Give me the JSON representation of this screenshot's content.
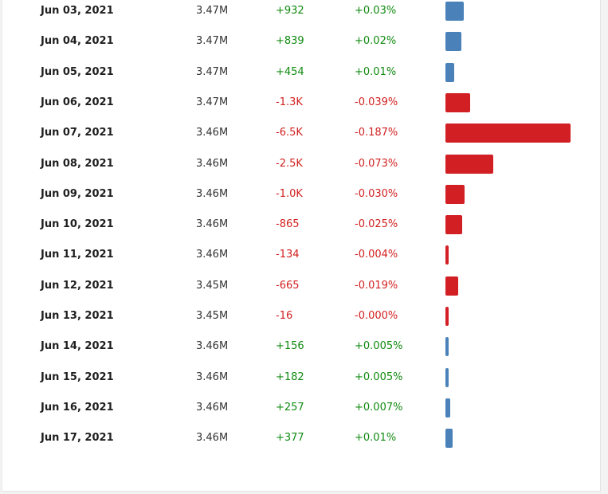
{
  "colors": {
    "positive_text": "#108a10",
    "negative_text": "#d22020",
    "positive_bar": "#4a81b8",
    "negative_bar": "#d21f24"
  },
  "table": {
    "rows": [
      {
        "date": "Jun 03, 2021",
        "total": "3.47M",
        "change": "+932",
        "change_pct": "+0.03%",
        "direction": "up",
        "change_value": 932
      },
      {
        "date": "Jun 04, 2021",
        "total": "3.47M",
        "change": "+839",
        "change_pct": "+0.02%",
        "direction": "up",
        "change_value": 839
      },
      {
        "date": "Jun 05, 2021",
        "total": "3.47M",
        "change": "+454",
        "change_pct": "+0.01%",
        "direction": "up",
        "change_value": 454
      },
      {
        "date": "Jun 06, 2021",
        "total": "3.47M",
        "change": "-1.3K",
        "change_pct": "-0.039%",
        "direction": "down",
        "change_value": -1300
      },
      {
        "date": "Jun 07, 2021",
        "total": "3.46M",
        "change": "-6.5K",
        "change_pct": "-0.187%",
        "direction": "down",
        "change_value": -6500
      },
      {
        "date": "Jun 08, 2021",
        "total": "3.46M",
        "change": "-2.5K",
        "change_pct": "-0.073%",
        "direction": "down",
        "change_value": -2500
      },
      {
        "date": "Jun 09, 2021",
        "total": "3.46M",
        "change": "-1.0K",
        "change_pct": "-0.030%",
        "direction": "down",
        "change_value": -1000
      },
      {
        "date": "Jun 10, 2021",
        "total": "3.46M",
        "change": "-865",
        "change_pct": "-0.025%",
        "direction": "down",
        "change_value": -865
      },
      {
        "date": "Jun 11, 2021",
        "total": "3.46M",
        "change": "-134",
        "change_pct": "-0.004%",
        "direction": "down",
        "change_value": -134
      },
      {
        "date": "Jun 12, 2021",
        "total": "3.45M",
        "change": "-665",
        "change_pct": "-0.019%",
        "direction": "down",
        "change_value": -665
      },
      {
        "date": "Jun 13, 2021",
        "total": "3.45M",
        "change": "-16",
        "change_pct": "-0.000%",
        "direction": "down",
        "change_value": -16
      },
      {
        "date": "Jun 14, 2021",
        "total": "3.46M",
        "change": "+156",
        "change_pct": "+0.005%",
        "direction": "up",
        "change_value": 156
      },
      {
        "date": "Jun 15, 2021",
        "total": "3.46M",
        "change": "+182",
        "change_pct": "+0.005%",
        "direction": "up",
        "change_value": 182
      },
      {
        "date": "Jun 16, 2021",
        "total": "3.46M",
        "change": "+257",
        "change_pct": "+0.007%",
        "direction": "up",
        "change_value": 257
      },
      {
        "date": "Jun 17, 2021",
        "total": "3.46M",
        "change": "+377",
        "change_pct": "+0.01%",
        "direction": "up",
        "change_value": 377
      }
    ]
  }
}
